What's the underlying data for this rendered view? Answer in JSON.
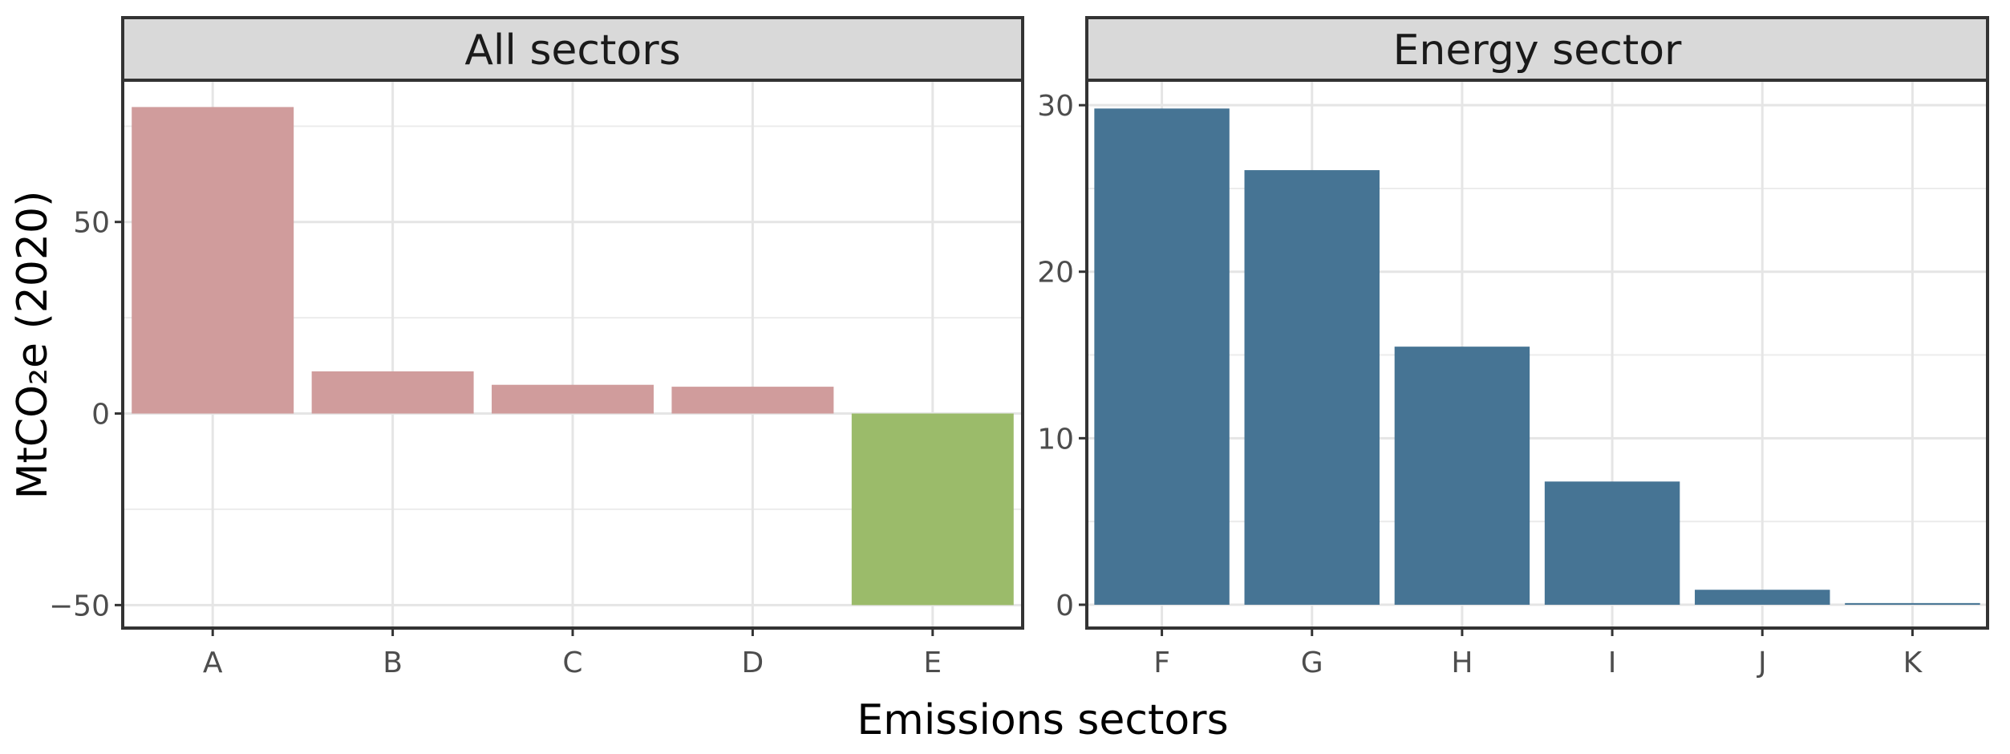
{
  "chart_data": {
    "type": "bar",
    "xlabel": "Emissions sectors",
    "ylabel": "MtCO₂e (2020)",
    "grid": true,
    "facets": [
      {
        "title": "All sectors",
        "categories": [
          "A",
          "B",
          "C",
          "D",
          "E"
        ],
        "values": [
          80,
          11,
          7.5,
          7,
          -50
        ],
        "colors": [
          "#d09c9c",
          "#d09c9c",
          "#d09c9c",
          "#d09c9c",
          "#9bbb6a"
        ],
        "ylim": [
          -56,
          87
        ],
        "yticks": [
          -50,
          0,
          50
        ],
        "ytick_labels": [
          "−50",
          "0",
          "50"
        ]
      },
      {
        "title": "Energy sector",
        "categories": [
          "F",
          "G",
          "H",
          "I",
          "J",
          "K"
        ],
        "values": [
          29.8,
          26.1,
          15.5,
          7.4,
          0.9,
          0.1
        ],
        "colors": [
          "#467494",
          "#467494",
          "#467494",
          "#467494",
          "#467494",
          "#467494"
        ],
        "ylim": [
          -1.4,
          31.5
        ],
        "yticks": [
          0,
          10,
          20,
          30
        ],
        "ytick_labels": [
          "0",
          "10",
          "20",
          "30"
        ]
      }
    ]
  }
}
